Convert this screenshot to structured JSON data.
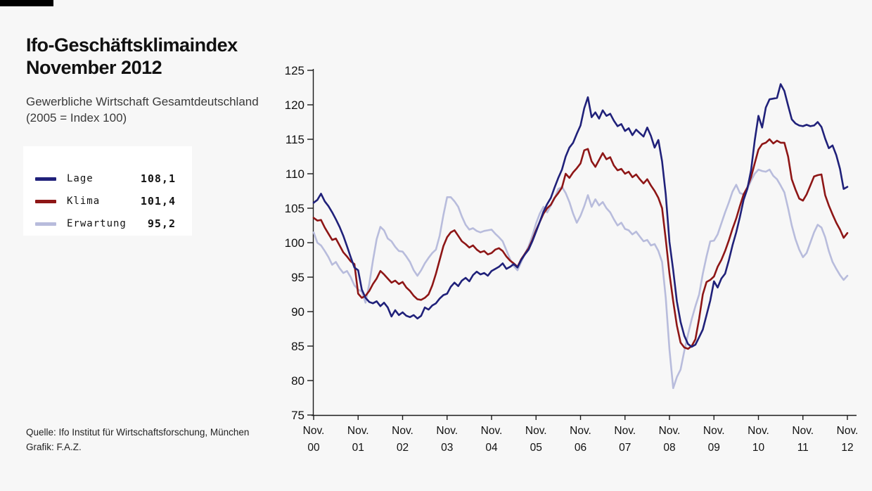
{
  "colors": {
    "background": "#f7f7f7",
    "top_bar": "#000000",
    "axis": "#1a1a1a",
    "lage": "#20217a",
    "klima": "#8e1616",
    "erwartung": "#b8bcdc",
    "legend_background": "#ffffff"
  },
  "header": {
    "title_line1": "Ifo-Geschäftsklimaindex",
    "title_line2": "November 2012",
    "subtitle_line1": "Gewerbliche Wirtschaft Gesamtdeutschland",
    "subtitle_line2": "(2005 = Index 100)"
  },
  "legend": {
    "items": [
      {
        "label": "Lage",
        "value": "108,1",
        "color": "#20217a"
      },
      {
        "label": "Klima",
        "value": "101,4",
        "color": "#8e1616"
      },
      {
        "label": "Erwartung",
        "value": "95,2",
        "color": "#b8bcdc"
      }
    ]
  },
  "footer": {
    "source": "Quelle: Ifo Institut für Wirtschaftsforschung, München",
    "credit": "Grafik: F.A.Z."
  },
  "chart_data": {
    "type": "line",
    "title": "Ifo-Geschäftsklimaindex November 2012",
    "xlabel": "",
    "ylabel": "",
    "ylim": [
      75,
      125
    ],
    "yticks": [
      75,
      80,
      85,
      90,
      95,
      100,
      105,
      110,
      115,
      120,
      125
    ],
    "grid": false,
    "legend_position": "upper-left-outside",
    "frequency": "monthly",
    "x_start": "Nov. 2000",
    "x_end": "Nov. 2012",
    "x_tick_labels": [
      [
        "Nov.",
        "00"
      ],
      [
        "Nov.",
        "01"
      ],
      [
        "Nov.",
        "02"
      ],
      [
        "Nov.",
        "03"
      ],
      [
        "Nov.",
        "04"
      ],
      [
        "Nov.",
        "05"
      ],
      [
        "Nov.",
        "06"
      ],
      [
        "Nov.",
        "07"
      ],
      [
        "Nov.",
        "08"
      ],
      [
        "Nov.",
        "09"
      ],
      [
        "Nov.",
        "10"
      ],
      [
        "Nov.",
        "11"
      ],
      [
        "Nov.",
        "12"
      ]
    ],
    "series": [
      {
        "name": "Lage",
        "color": "#20217a",
        "final_value": 108.1,
        "values": [
          105.8,
          106.2,
          107.1,
          106.0,
          105.3,
          104.4,
          103.4,
          102.3,
          101.0,
          99.5,
          97.9,
          96.4,
          96.0,
          93.2,
          92.0,
          91.4,
          91.2,
          91.5,
          90.8,
          91.3,
          90.6,
          89.3,
          90.2,
          89.5,
          89.9,
          89.4,
          89.2,
          89.5,
          89.0,
          89.4,
          90.6,
          90.3,
          90.9,
          91.2,
          91.9,
          92.4,
          92.6,
          93.6,
          94.2,
          93.7,
          94.5,
          94.9,
          94.4,
          95.3,
          95.8,
          95.4,
          95.6,
          95.2,
          95.9,
          96.2,
          96.5,
          97.0,
          96.2,
          96.5,
          96.9,
          96.4,
          97.5,
          98.3,
          99.0,
          100.2,
          101.6,
          103.0,
          104.5,
          105.6,
          106.5,
          108.0,
          109.4,
          110.6,
          112.5,
          113.8,
          114.5,
          115.8,
          117.0,
          119.5,
          121.1,
          118.2,
          118.9,
          118.0,
          119.2,
          118.4,
          118.7,
          117.7,
          116.9,
          117.2,
          116.2,
          116.6,
          115.6,
          116.4,
          115.9,
          115.4,
          116.7,
          115.5,
          113.8,
          114.9,
          111.8,
          107.0,
          100.1,
          96.0,
          91.5,
          88.5,
          86.5,
          85.3,
          84.9,
          85.2,
          86.3,
          87.4,
          89.5,
          91.6,
          94.4,
          93.5,
          94.8,
          95.5,
          97.4,
          99.6,
          101.5,
          103.7,
          106.2,
          107.8,
          110.5,
          114.8,
          118.4,
          116.7,
          119.6,
          120.8,
          120.9,
          121.0,
          123.0,
          122.0,
          119.9,
          117.9,
          117.3,
          117.0,
          116.9,
          117.1,
          116.9,
          117.0,
          117.5,
          116.8,
          115.1,
          113.7,
          114.1,
          112.7,
          110.7,
          107.8,
          108.1
        ]
      },
      {
        "name": "Klima",
        "color": "#8e1616",
        "final_value": 101.4,
        "values": [
          103.6,
          103.2,
          103.3,
          102.2,
          101.3,
          100.4,
          100.6,
          99.6,
          98.6,
          98.0,
          97.3,
          96.9,
          92.6,
          92.0,
          92.3,
          93.0,
          94.0,
          94.8,
          95.9,
          95.4,
          94.8,
          94.2,
          94.5,
          94.0,
          94.3,
          93.5,
          93.0,
          92.3,
          91.8,
          91.7,
          92.0,
          92.5,
          93.8,
          95.5,
          97.5,
          99.5,
          100.8,
          101.5,
          101.8,
          101.0,
          100.2,
          99.8,
          99.3,
          99.6,
          99.0,
          98.6,
          98.8,
          98.3,
          98.5,
          99.0,
          99.2,
          98.8,
          98.0,
          97.4,
          97.0,
          96.5,
          97.6,
          98.4,
          99.2,
          100.4,
          101.8,
          103.0,
          104.2,
          105.0,
          105.5,
          106.5,
          107.2,
          108.0,
          110.0,
          109.4,
          110.2,
          110.8,
          111.5,
          113.4,
          113.6,
          111.8,
          111.0,
          112.0,
          113.0,
          112.1,
          112.4,
          111.2,
          110.5,
          110.7,
          110.0,
          110.3,
          109.5,
          109.9,
          109.2,
          108.6,
          109.2,
          108.3,
          107.5,
          106.5,
          105.0,
          100.5,
          95.5,
          91.5,
          88.0,
          85.5,
          84.8,
          84.6,
          85.0,
          86.0,
          89.0,
          92.5,
          94.3,
          94.6,
          95.1,
          96.5,
          97.5,
          98.8,
          100.3,
          102.0,
          103.5,
          105.3,
          107.0,
          108.0,
          109.5,
          111.5,
          113.5,
          114.3,
          114.5,
          115.0,
          114.4,
          114.8,
          114.5,
          114.5,
          112.5,
          109.2,
          107.7,
          106.4,
          106.1,
          107.0,
          108.3,
          109.6,
          109.8,
          109.9,
          106.9,
          105.4,
          104.1,
          102.9,
          101.9,
          100.7,
          101.4
        ]
      },
      {
        "name": "Erwartung",
        "color": "#b8bcdc",
        "final_value": 95.2,
        "values": [
          101.5,
          100.0,
          99.6,
          98.8,
          97.9,
          96.8,
          97.2,
          96.3,
          95.6,
          95.9,
          95.0,
          93.8,
          93.2,
          92.9,
          91.3,
          94.0,
          97.4,
          100.5,
          102.3,
          101.8,
          100.6,
          100.2,
          99.4,
          98.8,
          98.7,
          98.0,
          97.2,
          96.0,
          95.2,
          96.0,
          97.0,
          97.8,
          98.5,
          99.0,
          101.0,
          104.0,
          106.6,
          106.6,
          106.0,
          105.2,
          103.8,
          102.6,
          101.9,
          102.1,
          101.7,
          101.5,
          101.7,
          101.8,
          101.9,
          101.3,
          100.8,
          100.2,
          98.9,
          97.6,
          96.6,
          96.0,
          97.2,
          98.4,
          99.5,
          101.0,
          102.8,
          104.2,
          105.2,
          104.4,
          105.4,
          106.4,
          107.8,
          108.1,
          107.2,
          105.9,
          104.2,
          102.9,
          103.9,
          105.3,
          106.9,
          105.2,
          106.3,
          105.4,
          105.9,
          105.0,
          104.4,
          103.4,
          102.5,
          102.9,
          102.0,
          101.8,
          101.2,
          101.6,
          100.9,
          100.2,
          100.4,
          99.6,
          99.8,
          98.8,
          97.2,
          92.0,
          84.5,
          78.9,
          80.5,
          81.6,
          84.3,
          86.7,
          88.9,
          90.8,
          92.5,
          95.5,
          98.0,
          100.2,
          100.3,
          101.2,
          102.8,
          104.4,
          105.8,
          107.4,
          108.4,
          107.2,
          107.0,
          107.8,
          109.0,
          110.0,
          110.6,
          110.4,
          110.3,
          110.6,
          109.7,
          109.2,
          108.3,
          107.3,
          105.0,
          102.5,
          100.5,
          99.0,
          97.9,
          98.5,
          100.0,
          101.5,
          102.6,
          102.2,
          100.8,
          98.8,
          97.2,
          96.2,
          95.3,
          94.6,
          95.2
        ]
      }
    ]
  }
}
